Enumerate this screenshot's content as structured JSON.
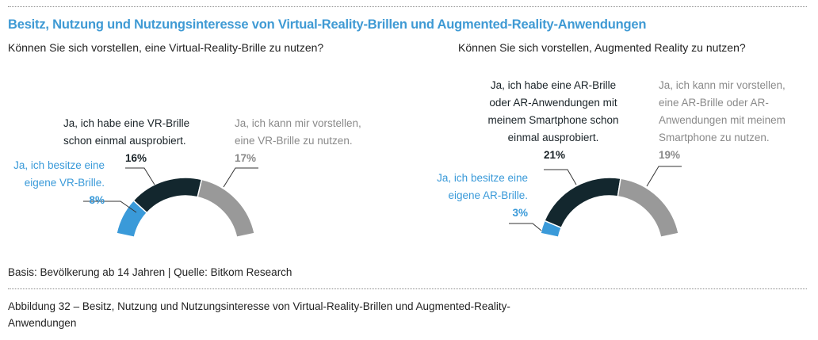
{
  "title": "Besitz, Nutzung und Nutzungsinteresse von Virtual-Reality-Brillen und Augmented-Reality-Anwendungen",
  "colors": {
    "own": "#3a9ad9",
    "tried": "#13272e",
    "imagine": "#999999",
    "title": "#3f9ad4"
  },
  "chart_data": [
    {
      "type": "pie",
      "subtype": "half-donut",
      "title": "Können Sie sich vorstellen, eine Virtual-Reality-Brille zu nutzen?",
      "unit": "%",
      "categories": [
        "Ja, ich besitze eine eigene VR-Brille.",
        "Ja, ich habe eine VR-Brille schon einmal ausprobiert.",
        "Ja, ich kann mir vorstellen, eine VR-Brille zu nutzen."
      ],
      "values": [
        8,
        16,
        17
      ],
      "labels": [
        {
          "lines": [
            "Ja, ich besitze eine",
            "eigene VR-Brille."
          ],
          "pct": "8%"
        },
        {
          "lines": [
            "Ja, ich habe eine VR-Brille",
            "schon einmal ausprobiert."
          ],
          "pct": "16%"
        },
        {
          "lines": [
            "Ja, ich kann mir vorstellen,",
            "eine VR-Brille zu nutzen."
          ],
          "pct": "17%"
        }
      ]
    },
    {
      "type": "pie",
      "subtype": "half-donut",
      "title": "Können Sie sich vorstellen, Augmented Reality zu nutzen?",
      "unit": "%",
      "categories": [
        "Ja, ich besitze eine eigene AR-Brille.",
        "Ja, ich habe eine AR-Brille oder AR-Anwendungen mit meinem Smartphone schon einmal ausprobiert.",
        "Ja, ich kann mir vorstellen, eine AR-Brille oder AR-Anwendungen mit meinem Smartphone zu nutzen."
      ],
      "values": [
        3,
        21,
        19
      ],
      "labels": [
        {
          "lines": [
            "Ja, ich besitze eine",
            "eigene AR-Brille."
          ],
          "pct": "3%"
        },
        {
          "lines": [
            "Ja, ich habe eine AR-Brille",
            "oder AR-Anwendungen mit",
            "meinem Smartphone schon",
            "einmal ausprobiert."
          ],
          "pct": "21%"
        },
        {
          "lines": [
            "Ja, ich kann mir vorstellen,",
            "eine AR-Brille oder AR-",
            "Anwendungen mit meinem",
            "Smartphone zu nutzen."
          ],
          "pct": "19%"
        }
      ]
    }
  ],
  "source": "Basis: Bevölkerung ab 14 Jahren | Quelle: Bitkom Research",
  "caption": "Abbildung 32 – Besitz, Nutzung und Nutzungsinteresse von Virtual-Reality-Brillen und Augmented-Reality-Anwendungen"
}
